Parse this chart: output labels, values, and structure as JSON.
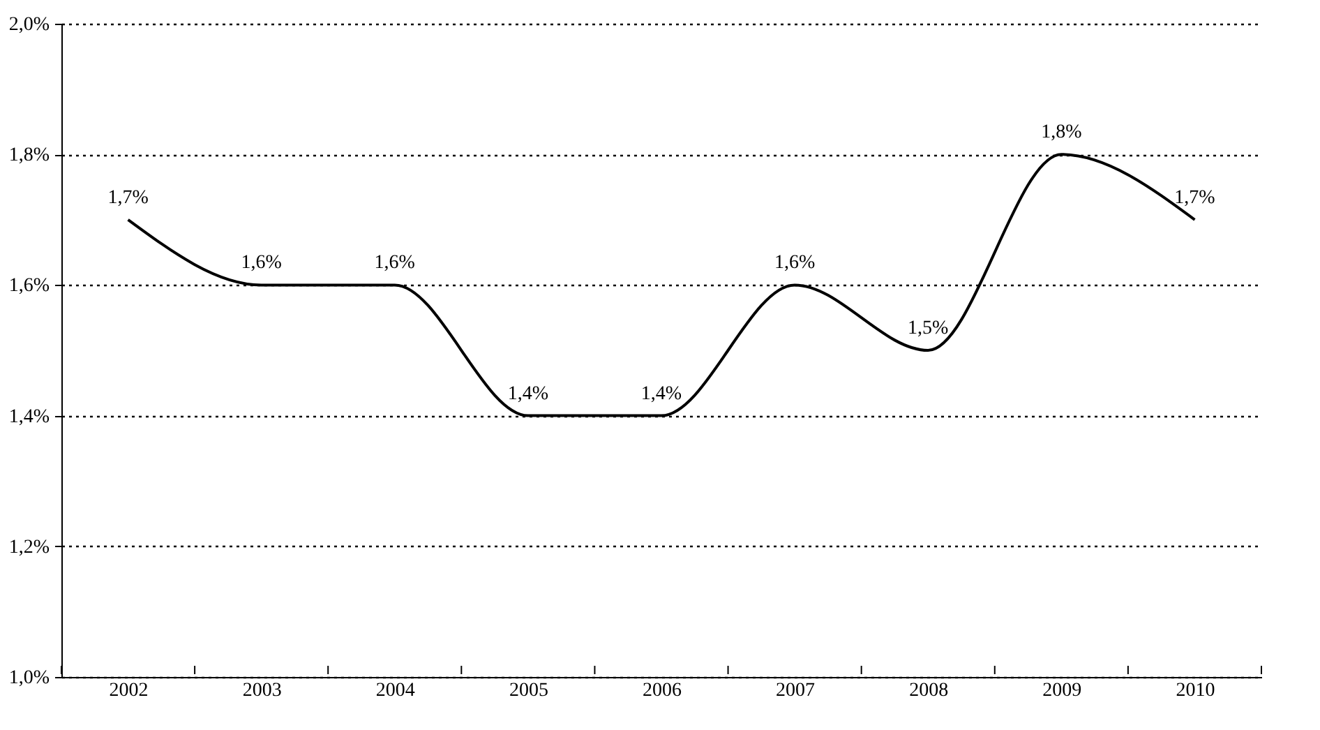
{
  "chart_data": {
    "type": "line",
    "categories": [
      "2002",
      "2003",
      "2004",
      "2005",
      "2006",
      "2007",
      "2008",
      "2009",
      "2010"
    ],
    "series": [
      {
        "color": "#000000",
        "values": [
          1.7,
          1.6,
          1.6,
          1.4,
          1.4,
          1.6,
          1.5,
          1.8,
          1.7
        ],
        "value_labels": [
          "1,7%",
          "1,6%",
          "1,6%",
          "1,4%",
          "1,4%",
          "1,6%",
          "1,5%",
          "1,8%",
          "1,7%"
        ]
      }
    ],
    "ylim": [
      1.0,
      2.0
    ],
    "yticks": [
      {
        "value": 1.0,
        "label": "1,0%"
      },
      {
        "value": 1.2,
        "label": "1,2%"
      },
      {
        "value": 1.4,
        "label": "1,4%"
      },
      {
        "value": 1.6,
        "label": "1,6%"
      },
      {
        "value": 1.8,
        "label": "1,8%"
      },
      {
        "value": 2.0,
        "label": "2,0%"
      }
    ],
    "grid": "y",
    "marker": "none",
    "line_style": "solid"
  }
}
